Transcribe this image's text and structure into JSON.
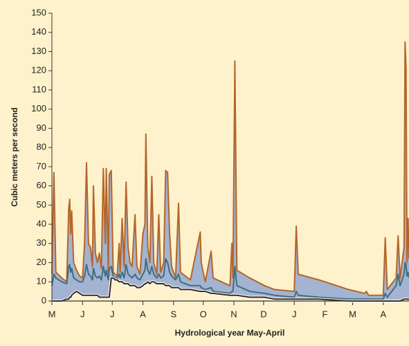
{
  "chart_data": {
    "type": "hydrograph",
    "x_label": "Hydrological year  May-April",
    "y_label": "Cubic meters per second",
    "xlim": [
      0,
      361
    ],
    "xticks": [
      {
        "value": 0,
        "label": "M"
      },
      {
        "value": 31,
        "label": "J"
      },
      {
        "value": 61,
        "label": "J"
      },
      {
        "value": 92,
        "label": "A"
      },
      {
        "value": 123,
        "label": "S"
      },
      {
        "value": 153,
        "label": "O"
      },
      {
        "value": 184,
        "label": "N"
      },
      {
        "value": 214,
        "label": "D"
      },
      {
        "value": 245,
        "label": "J"
      },
      {
        "value": 276,
        "label": "F"
      },
      {
        "value": 304,
        "label": "M"
      },
      {
        "value": 335,
        "label": "A"
      }
    ],
    "ylim": [
      0,
      150
    ],
    "yticks": [
      0,
      10,
      20,
      30,
      40,
      50,
      60,
      70,
      80,
      90,
      100,
      110,
      120,
      130,
      140,
      150
    ],
    "band_color": "#a3b3d2",
    "background": "#fdf2cc",
    "x": [
      0,
      2,
      4,
      10,
      15,
      17,
      18,
      19,
      20,
      22,
      25,
      28,
      31,
      33,
      35,
      37,
      39,
      41,
      42,
      44,
      46,
      48,
      50,
      52,
      54,
      55,
      57,
      58,
      60,
      62,
      64,
      66,
      68,
      69,
      71,
      73,
      75,
      77,
      79,
      81,
      84,
      86,
      89,
      92,
      94,
      95,
      97,
      99,
      101,
      103,
      106,
      108,
      110,
      113,
      115,
      117,
      119,
      121,
      123,
      125,
      128,
      130,
      140,
      150,
      151,
      155,
      161,
      163,
      180,
      182,
      183,
      185,
      187,
      200,
      215,
      225,
      245,
      247,
      249,
      270,
      300,
      316,
      318,
      320,
      335,
      337,
      339,
      348,
      350,
      352,
      356,
      357,
      358,
      359,
      360,
      361
    ],
    "series": [
      {
        "color": "#b5652a",
        "values": [
          14,
          67,
          15,
          12,
          10,
          48,
          53,
          35,
          47,
          20,
          16,
          13,
          12,
          30,
          72,
          30,
          28,
          18,
          60,
          25,
          20,
          25,
          17,
          69,
          30,
          69,
          15,
          66,
          68,
          15,
          14,
          13,
          30,
          15,
          43,
          18,
          62,
          28,
          20,
          18,
          45,
          18,
          14,
          35,
          40,
          87,
          28,
          20,
          65,
          20,
          14,
          45,
          15,
          20,
          68,
          67,
          35,
          18,
          15,
          12,
          51,
          15,
          11,
          36,
          20,
          10,
          26,
          12,
          8,
          30,
          12,
          125,
          16,
          12,
          8,
          6,
          5,
          39,
          14,
          11,
          6,
          4,
          5,
          3,
          3,
          33,
          6,
          12,
          34,
          12,
          28,
          135,
          122,
          20,
          43,
          22
        ]
      },
      {
        "color": "#3e6e7f",
        "values": [
          8,
          14,
          12,
          10,
          9,
          18,
          19,
          15,
          17,
          12,
          11,
          10,
          10,
          13,
          19,
          14,
          13,
          11,
          17,
          13,
          12,
          13,
          11,
          18,
          13,
          16,
          11,
          17,
          18,
          13,
          12,
          12,
          14,
          12,
          15,
          12,
          19,
          14,
          13,
          12,
          14,
          12,
          11,
          14,
          16,
          22,
          16,
          14,
          18,
          14,
          12,
          14,
          12,
          13,
          22,
          20,
          15,
          13,
          12,
          11,
          14,
          10,
          8,
          8,
          7,
          6,
          7,
          5,
          4,
          5,
          5,
          18,
          8,
          5,
          4,
          3,
          2,
          5,
          3,
          2,
          1,
          1,
          1,
          1,
          1,
          4,
          2,
          8,
          14,
          8,
          14,
          20,
          19,
          13,
          15,
          12
        ]
      },
      {
        "color": "#3a2816",
        "values": [
          0,
          0,
          0,
          0,
          1,
          1,
          2,
          2,
          3,
          4,
          5,
          4,
          3,
          3,
          3,
          3,
          3,
          3,
          3,
          3,
          3,
          2,
          2,
          2,
          2,
          2,
          2,
          2,
          12,
          12,
          11,
          11,
          10,
          10,
          10,
          9,
          9,
          9,
          8,
          8,
          8,
          7,
          7,
          8,
          9,
          9,
          10,
          9,
          10,
          10,
          9,
          9,
          9,
          9,
          8,
          8,
          8,
          7,
          7,
          7,
          7,
          6,
          6,
          5,
          5,
          5,
          4,
          4,
          3,
          3,
          3,
          3,
          3,
          2,
          2,
          1,
          1,
          1,
          1,
          1,
          0,
          0,
          0,
          0,
          0,
          0,
          0,
          0,
          0,
          0,
          1,
          1,
          1,
          1,
          1,
          1
        ]
      }
    ]
  }
}
